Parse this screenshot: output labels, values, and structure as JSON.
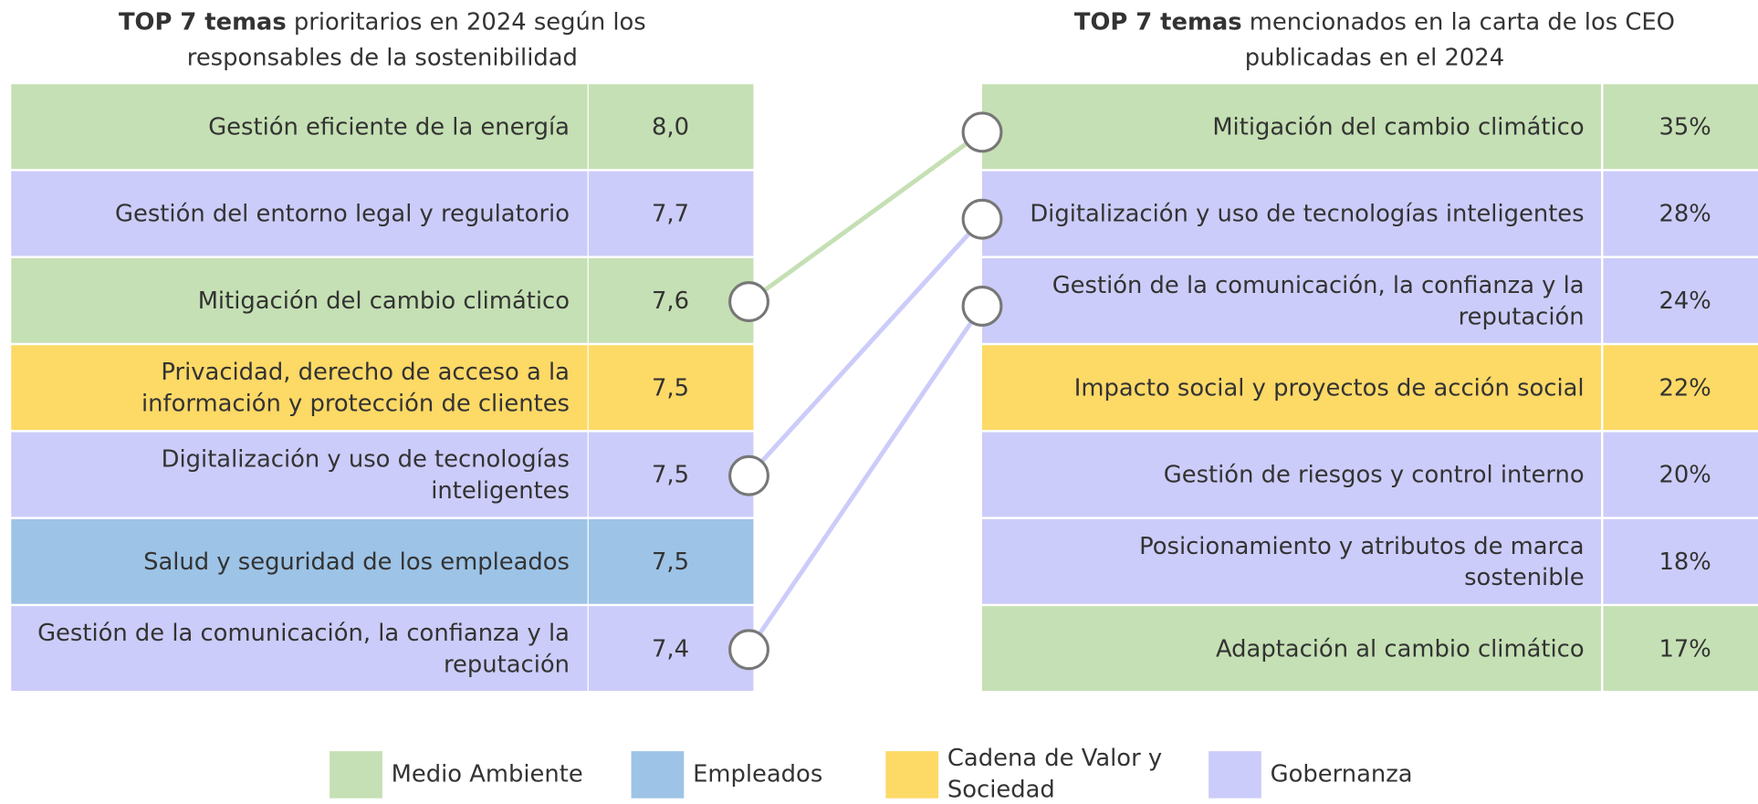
{
  "left": {
    "title": {
      "bold": "TOP 7 temas",
      "line1": "prioritarios en 2024 según los",
      "line2": "responsables de la sostenibilidad"
    },
    "rows": [
      {
        "lines": [
          "Gestión eficiente de la energía"
        ],
        "value": "8,0",
        "legend": 0
      },
      {
        "lines": [
          "Gestión del entorno legal y regulatorio"
        ],
        "value": "7,7",
        "legend": 3
      },
      {
        "lines": [
          "Mitigación del cambio climático"
        ],
        "value": "7,6",
        "legend": 0
      },
      {
        "lines": [
          "Privacidad, derecho de acceso a la",
          "información y protección de clientes"
        ],
        "value": "7,5",
        "legend": 2
      },
      {
        "lines": [
          "Digitalización y uso de tecnologías",
          "inteligentes"
        ],
        "value": "7,5",
        "legend": 3
      },
      {
        "lines": [
          "Salud y seguridad de los empleados"
        ],
        "value": "7,5",
        "legend": 1
      },
      {
        "lines": [
          "Gestión de la comunicación, la confianza y la",
          "reputación"
        ],
        "value": "7,4",
        "legend": 3
      }
    ]
  },
  "right": {
    "title": {
      "bold": "TOP 7 temas",
      "line1": "mencionados en la carta de los CEO",
      "line2": "publicadas en el 2024"
    },
    "rows": [
      {
        "lines": [
          "Mitigación del cambio climático"
        ],
        "value": "35%",
        "legend": 0
      },
      {
        "lines": [
          "Digitalización y uso de tecnologías inteligentes"
        ],
        "value": "28%",
        "legend": 3
      },
      {
        "lines": [
          "Gestión de la comunicación, la confianza y la",
          "reputación"
        ],
        "value": "24%",
        "legend": 3
      },
      {
        "lines": [
          "Impacto social y proyectos de acción social"
        ],
        "value": "22%",
        "legend": 2
      },
      {
        "lines": [
          "Gestión de riesgos y control interno"
        ],
        "value": "20%",
        "legend": 3
      },
      {
        "lines": [
          "Posicionamiento y atributos de marca",
          "sostenible"
        ],
        "value": "18%",
        "legend": 3
      },
      {
        "lines": [
          "Adaptación al cambio climático"
        ],
        "value": "17%",
        "legend": 0
      }
    ]
  },
  "links": [
    {
      "left": 2,
      "right": 0,
      "legend": 0
    },
    {
      "left": 4,
      "right": 1,
      "legend": 3
    },
    {
      "left": 6,
      "right": 2,
      "legend": 3
    }
  ],
  "legend": [
    {
      "lines": [
        "Medio Ambiente"
      ],
      "color": "#c5e0b4"
    },
    {
      "lines": [
        "Empleados"
      ],
      "color": "#9dc3e6"
    },
    {
      "lines": [
        "Cadena de Valor y",
        "Sociedad"
      ],
      "color": "#fdd966"
    },
    {
      "lines": [
        "Gobernanza"
      ],
      "color": "#ccccfa"
    }
  ]
}
